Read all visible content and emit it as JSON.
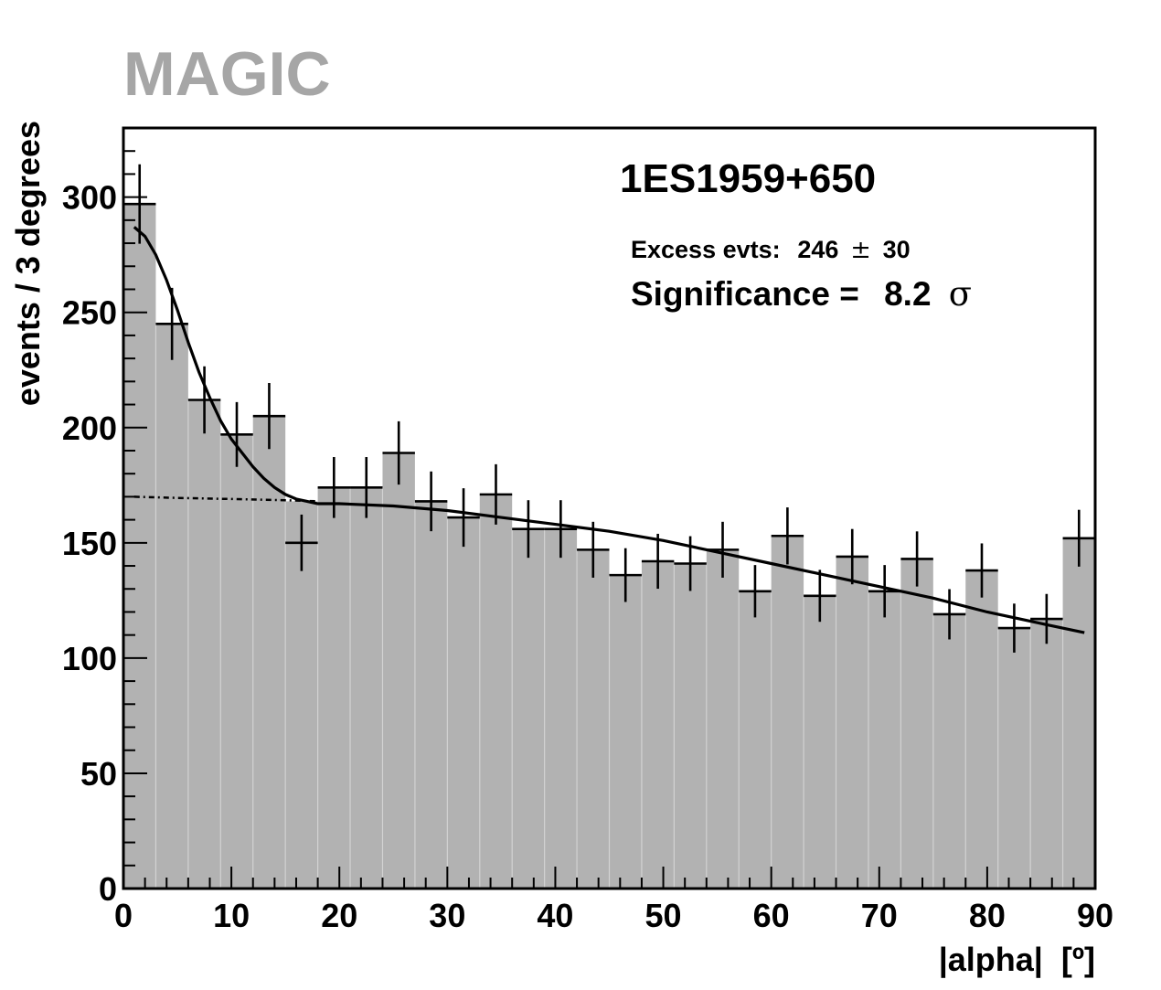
{
  "logo": "MAGIC",
  "chart_data": {
    "type": "bar",
    "title": "1ES1959+650",
    "annotations": {
      "excess_label": "Excess evts:",
      "excess_value": "246",
      "excess_pm": "±",
      "excess_error": "30",
      "significance_label": "Significance =",
      "significance_value": "8.2",
      "significance_unit": "σ"
    },
    "xlabel": "|alpha|  [º]",
    "ylabel": "events / 3 degrees",
    "xlim": [
      0,
      90
    ],
    "ylim": [
      0,
      330
    ],
    "xticks": [
      0,
      10,
      20,
      30,
      40,
      50,
      60,
      70,
      80,
      90
    ],
    "yticks": [
      0,
      50,
      100,
      150,
      200,
      250,
      300
    ],
    "bin_width": 3,
    "bin_edges_start": 0,
    "values": [
      297,
      245,
      212,
      197,
      205,
      168,
      174,
      174,
      189,
      168,
      161,
      171,
      156,
      156,
      147,
      136,
      142,
      141,
      147,
      129,
      153,
      127,
      144,
      129,
      143,
      119,
      138,
      113,
      117,
      152
    ],
    "data_points": [
      297,
      245,
      212,
      197,
      205,
      150,
      174,
      174,
      189,
      168,
      161,
      171,
      156,
      156,
      147,
      136,
      142,
      141,
      147,
      129,
      153,
      127,
      144,
      129,
      143,
      119,
      138,
      113,
      117,
      152
    ],
    "fit_curve": {
      "x": [
        1,
        2,
        3,
        4,
        5,
        6,
        7,
        8,
        9,
        10,
        11,
        12,
        13,
        14,
        15,
        16,
        17,
        18,
        20,
        25,
        30,
        35,
        40,
        45,
        50,
        55,
        60,
        65,
        70,
        75,
        80,
        85,
        89
      ],
      "y": [
        287,
        283,
        275,
        264,
        251,
        237,
        224,
        213,
        203,
        195,
        189,
        183,
        178,
        174,
        171,
        169,
        168,
        167,
        167,
        166,
        164,
        161,
        158,
        155,
        151,
        146,
        141,
        136,
        131,
        126,
        120,
        115,
        111
      ]
    },
    "background_fit": {
      "x": [
        1,
        5,
        10,
        15,
        18
      ],
      "y": [
        170,
        169.5,
        169,
        168.5,
        168
      ]
    },
    "grid": false,
    "colors": {
      "bars": "#b2b2b2",
      "bin_separators": "#d2d2d2",
      "markers": "#000000",
      "fit": "#000000"
    }
  }
}
